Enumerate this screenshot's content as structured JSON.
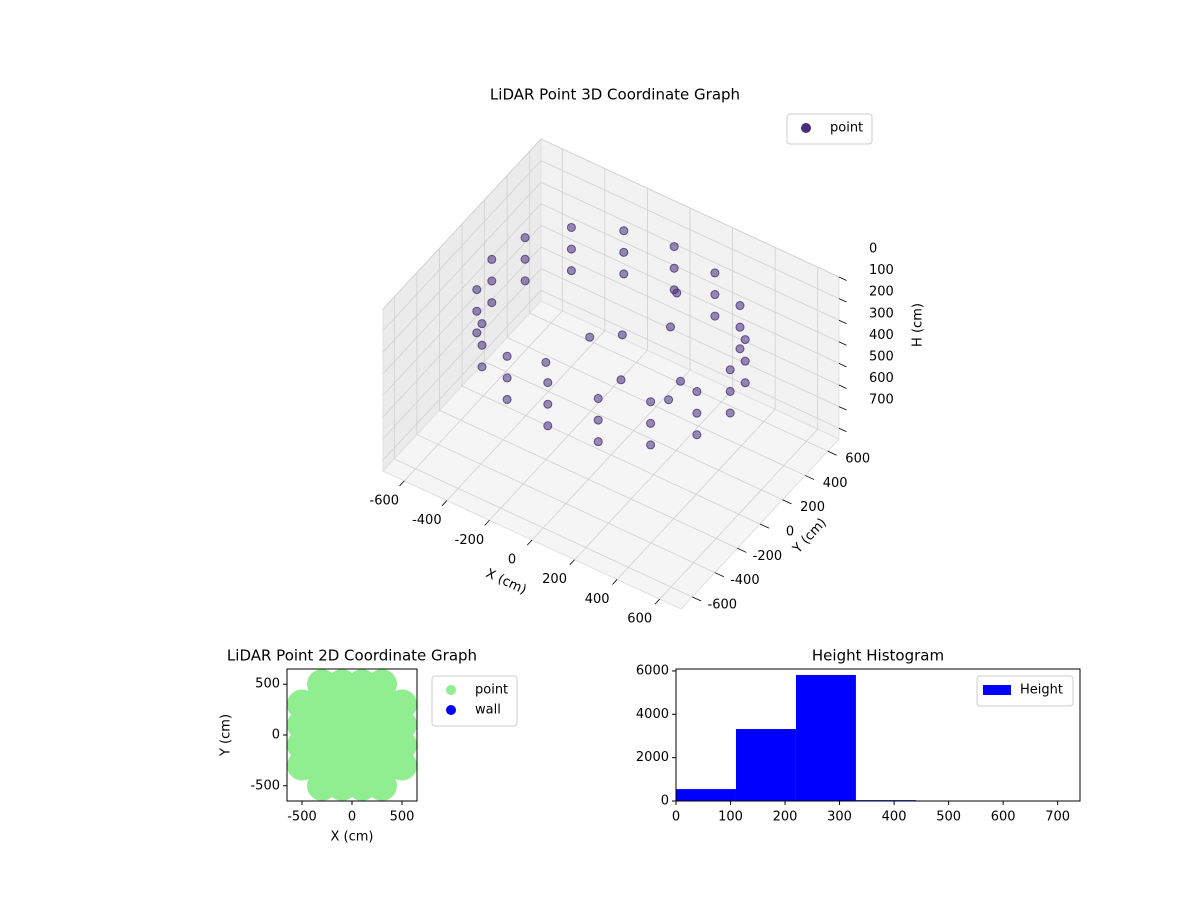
{
  "chart_data": [
    {
      "type": "scatter3d",
      "title": "LiDAR Point 3D Coordinate Graph",
      "xlabel": "X (cm)",
      "ylabel": "Y (cm)",
      "zlabel": "H (cm)",
      "xlim": [
        -700,
        700
      ],
      "ylim": [
        -700,
        700
      ],
      "zlim": [
        0,
        750
      ],
      "zinverted": true,
      "xticks": [
        -600,
        -400,
        -200,
        0,
        200,
        400,
        600
      ],
      "yticks": [
        -600,
        -400,
        -200,
        0,
        200,
        400,
        600
      ],
      "zticks": [
        0,
        100,
        200,
        300,
        400,
        500,
        600,
        700
      ],
      "legend": "upper right",
      "grid": true,
      "series": [
        {
          "name": "point",
          "color": "#472d7b",
          "x": [
            560,
            517,
            396,
            214,
            0,
            -214,
            -396,
            -517,
            -560,
            -517,
            -396,
            -214,
            0,
            214,
            396,
            517,
            560,
            517,
            396,
            214,
            0,
            -214,
            -396,
            -517,
            -560,
            -517,
            -396,
            -214,
            0,
            214,
            396,
            517,
            560,
            517,
            396,
            214,
            0,
            -214,
            -396,
            -517,
            -560,
            -517,
            -396,
            -214,
            0,
            214,
            396,
            517,
            -100,
            0,
            100,
            200,
            300,
            -200,
            150,
            350
          ],
          "y": [
            0,
            214,
            396,
            517,
            560,
            517,
            396,
            214,
            0,
            -214,
            -396,
            -517,
            -560,
            -517,
            -396,
            -214,
            0,
            214,
            396,
            517,
            560,
            517,
            396,
            214,
            0,
            -214,
            -396,
            -517,
            -560,
            -517,
            -396,
            -214,
            0,
            214,
            396,
            517,
            560,
            517,
            396,
            214,
            0,
            -214,
            -396,
            -517,
            -560,
            -517,
            -396,
            -214,
            0,
            100,
            -100,
            150,
            50,
            -200,
            300,
            -150
          ],
          "values": [
            100,
            100,
            100,
            100,
            100,
            100,
            100,
            100,
            100,
            100,
            100,
            100,
            100,
            100,
            100,
            100,
            200,
            200,
            200,
            200,
            200,
            200,
            200,
            200,
            200,
            200,
            200,
            200,
            200,
            200,
            200,
            200,
            300,
            300,
            300,
            300,
            300,
            300,
            300,
            300,
            300,
            300,
            300,
            300,
            300,
            300,
            300,
            300,
            250,
            250,
            300,
            150,
            300,
            300,
            100,
            250
          ]
        }
      ]
    },
    {
      "type": "scatter",
      "title": "LiDAR Point 2D Coordinate Graph",
      "xlabel": "X (cm)",
      "ylabel": "Y (cm)",
      "xlim": [
        -650,
        650
      ],
      "ylim": [
        -650,
        650
      ],
      "xticks": [
        -500,
        0,
        500
      ],
      "yticks": [
        -500,
        0,
        500
      ],
      "legend": "outside right",
      "series": [
        {
          "name": "point",
          "color": "#90ee90",
          "x": [
            -300,
            -100,
            100,
            300,
            -500,
            -300,
            -100,
            100,
            300,
            500,
            -500,
            -300,
            -100,
            100,
            300,
            500,
            -500,
            -300,
            -100,
            100,
            300,
            500,
            -500,
            -300,
            -100,
            100,
            300,
            500,
            -300,
            -100,
            100,
            300
          ],
          "y": [
            -500,
            -500,
            -500,
            -500,
            -300,
            -300,
            -300,
            -300,
            -300,
            -300,
            -100,
            -100,
            -100,
            -100,
            -100,
            -100,
            100,
            100,
            100,
            100,
            100,
            100,
            300,
            300,
            300,
            300,
            300,
            300,
            500,
            500,
            500,
            500
          ]
        },
        {
          "name": "wall",
          "color": "#0000ff",
          "x": [],
          "y": []
        }
      ]
    },
    {
      "type": "histogram",
      "title": "Height Histogram",
      "xlim": [
        0,
        741
      ],
      "ylim": [
        0,
        6090
      ],
      "xticks": [
        0,
        100,
        200,
        300,
        400,
        500,
        600,
        700
      ],
      "yticks": [
        0,
        2000,
        4000,
        6000
      ],
      "legend": "upper right",
      "series": [
        {
          "name": "Height",
          "color": "#0000ff",
          "bins": [
            0,
            110,
            220,
            330,
            440,
            550,
            660
          ],
          "values": [
            550,
            3320,
            5815,
            40,
            5,
            2
          ]
        }
      ]
    }
  ]
}
